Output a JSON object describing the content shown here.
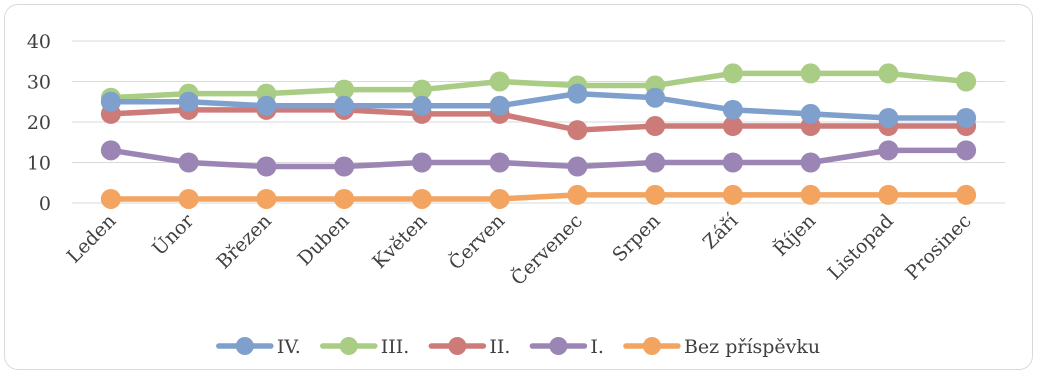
{
  "chart_data": {
    "type": "line",
    "categories": [
      "Leden",
      "Únor",
      "Březen",
      "Duben",
      "Květen",
      "Červen",
      "Červenec",
      "Srpen",
      "Září",
      "Říjen",
      "Listopad",
      "Prosinec"
    ],
    "series": [
      {
        "name": "IV.",
        "color": "#7f9fcc",
        "values": [
          25,
          25,
          24,
          24,
          24,
          24,
          27,
          26,
          23,
          22,
          21,
          21
        ]
      },
      {
        "name": "III.",
        "color": "#a9cd84",
        "values": [
          26,
          27,
          27,
          28,
          28,
          30,
          29,
          29,
          32,
          32,
          32,
          30
        ]
      },
      {
        "name": "II.",
        "color": "#cd7b79",
        "values": [
          22,
          23,
          23,
          23,
          22,
          22,
          18,
          19,
          19,
          19,
          19,
          19
        ]
      },
      {
        "name": "I.",
        "color": "#9b85b4",
        "values": [
          13,
          10,
          9,
          9,
          10,
          10,
          9,
          10,
          10,
          10,
          13,
          13
        ]
      },
      {
        "name": "Bez příspěvku",
        "color": "#f2a460",
        "values": [
          1,
          1,
          1,
          1,
          1,
          1,
          2,
          2,
          2,
          2,
          2,
          2
        ]
      }
    ],
    "yticks": [
      0,
      10,
      20,
      30,
      40
    ],
    "ylim": [
      0,
      40
    ],
    "grid": true,
    "legend_position": "bottom"
  }
}
